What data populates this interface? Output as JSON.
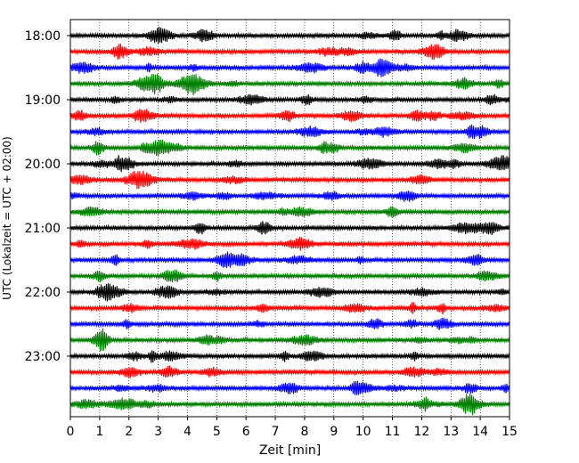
{
  "chart_data": {
    "type": "line",
    "title": "",
    "xlabel": "Zeit  [min]",
    "ylabel": "UTC (Lokalzeit = UTC + 02:00)",
    "xlim": [
      0,
      15
    ],
    "x_ticks": [
      "0",
      "1",
      "2",
      "3",
      "4",
      "5",
      "6",
      "7",
      "8",
      "9",
      "10",
      "11",
      "12",
      "13",
      "14",
      "15"
    ],
    "y_ticks": [
      "18:00",
      "19:00",
      "20:00",
      "21:00",
      "22:00",
      "23:00"
    ],
    "grid": "vertical-dotted",
    "traces": [
      {
        "start": "18:00",
        "color": "#000000"
      },
      {
        "start": "18:15",
        "color": "#ff0000"
      },
      {
        "start": "18:30",
        "color": "#0000ff"
      },
      {
        "start": "18:45",
        "color": "#008000"
      },
      {
        "start": "19:00",
        "color": "#000000"
      },
      {
        "start": "19:15",
        "color": "#ff0000"
      },
      {
        "start": "19:30",
        "color": "#0000ff"
      },
      {
        "start": "19:45",
        "color": "#008000"
      },
      {
        "start": "20:00",
        "color": "#000000"
      },
      {
        "start": "20:15",
        "color": "#ff0000"
      },
      {
        "start": "20:30",
        "color": "#0000ff"
      },
      {
        "start": "20:45",
        "color": "#008000"
      },
      {
        "start": "21:00",
        "color": "#000000"
      },
      {
        "start": "21:15",
        "color": "#ff0000"
      },
      {
        "start": "21:30",
        "color": "#0000ff"
      },
      {
        "start": "21:45",
        "color": "#008000"
      },
      {
        "start": "22:00",
        "color": "#000000"
      },
      {
        "start": "22:15",
        "color": "#ff0000"
      },
      {
        "start": "22:30",
        "color": "#0000ff"
      },
      {
        "start": "22:45",
        "color": "#008000"
      },
      {
        "start": "23:00",
        "color": "#000000"
      },
      {
        "start": "23:15",
        "color": "#ff0000"
      },
      {
        "start": "23:30",
        "color": "#0000ff"
      },
      {
        "start": "23:45",
        "color": "#008000"
      }
    ]
  }
}
